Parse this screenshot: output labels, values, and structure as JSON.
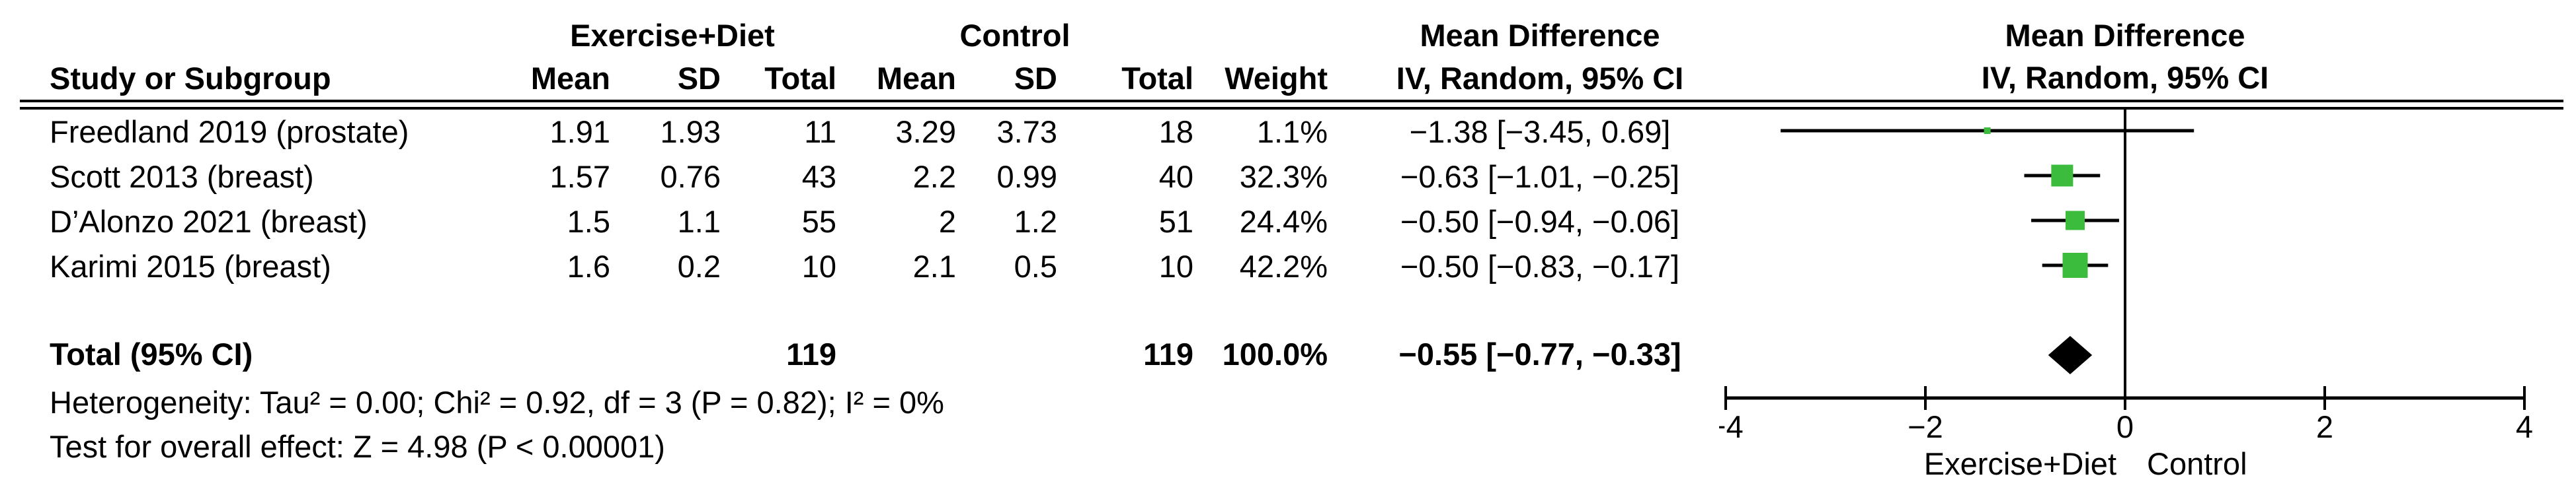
{
  "table": {
    "group1": "Exercise+Diet",
    "group2": "Control",
    "md_header": "Mean Difference",
    "col_headers": {
      "study": "Study or Subgroup",
      "mean": "Mean",
      "sd": "SD",
      "total": "Total",
      "weight": "Weight",
      "ci": "IV, Random, 95% CI"
    },
    "rows": [
      {
        "study": "Freedland 2019 (prostate)",
        "mean1": "1.91",
        "sd1": "1.93",
        "total1": "11",
        "mean2": "3.29",
        "sd2": "3.73",
        "total2": "18",
        "weight": "1.1%",
        "ci": "−1.38 [−3.45, 0.69]"
      },
      {
        "study": "Scott 2013 (breast)",
        "mean1": "1.57",
        "sd1": "0.76",
        "total1": "43",
        "mean2": "2.2",
        "sd2": "0.99",
        "total2": "40",
        "weight": "32.3%",
        "ci": "−0.63 [−1.01, −0.25]"
      },
      {
        "study": "D’Alonzo 2021 (breast)",
        "mean1": "1.5",
        "sd1": "1.1",
        "total1": "55",
        "mean2": "2",
        "sd2": "1.2",
        "total2": "51",
        "weight": "24.4%",
        "ci": "−0.50 [−0.94, −0.06]"
      },
      {
        "study": "Karimi 2015 (breast)",
        "mean1": "1.6",
        "sd1": "0.2",
        "total1": "10",
        "mean2": "2.1",
        "sd2": "0.5",
        "total2": "10",
        "weight": "42.2%",
        "ci": "−0.50 [−0.83, −0.17]"
      }
    ],
    "total_row": {
      "label": "Total (95% CI)",
      "total1": "119",
      "total2": "119",
      "weight": "100.0%",
      "ci": "−0.55 [−0.77, −0.33]"
    },
    "footnotes": {
      "heterogeneity": "Heterogeneity: Tau² = 0.00; Chi² = 0.92, df = 3 (P = 0.82); I² = 0%",
      "overall_effect": "Test for overall effect: Z = 4.98 (P < 0.00001)"
    }
  },
  "chart_data": {
    "type": "forest",
    "title": "Mean Difference",
    "subtitle": "IV, Random, 95% CI",
    "x_axis": {
      "min": -4,
      "max": 4,
      "ticks": [
        -4,
        -2,
        0,
        2,
        4
      ],
      "left_label": "Exercise+Diet",
      "right_label": "Control"
    },
    "marker_color": "#3CBC3C",
    "line_color": "#000000",
    "studies": [
      {
        "name": "Freedland 2019 (prostate)",
        "exercise_diet": {
          "mean": 1.91,
          "sd": 1.93,
          "total": 11
        },
        "control": {
          "mean": 3.29,
          "sd": 3.73,
          "total": 18
        },
        "weight_pct": 1.1,
        "md": -1.38,
        "ci_low": -3.45,
        "ci_high": 0.69
      },
      {
        "name": "Scott 2013 (breast)",
        "exercise_diet": {
          "mean": 1.57,
          "sd": 0.76,
          "total": 43
        },
        "control": {
          "mean": 2.2,
          "sd": 0.99,
          "total": 40
        },
        "weight_pct": 32.3,
        "md": -0.63,
        "ci_low": -1.01,
        "ci_high": -0.25
      },
      {
        "name": "D’Alonzo 2021 (breast)",
        "exercise_diet": {
          "mean": 1.5,
          "sd": 1.1,
          "total": 55
        },
        "control": {
          "mean": 2,
          "sd": 1.2,
          "total": 51
        },
        "weight_pct": 24.4,
        "md": -0.5,
        "ci_low": -0.94,
        "ci_high": -0.06
      },
      {
        "name": "Karimi 2015 (breast)",
        "exercise_diet": {
          "mean": 1.6,
          "sd": 0.2,
          "total": 10
        },
        "control": {
          "mean": 2.1,
          "sd": 0.5,
          "total": 10
        },
        "weight_pct": 42.2,
        "md": -0.5,
        "ci_low": -0.83,
        "ci_high": -0.17
      }
    ],
    "total": {
      "label": "Total (95% CI)",
      "exercise_diet_total": 119,
      "control_total": 119,
      "weight_pct": 100.0,
      "md": -0.55,
      "ci_low": -0.77,
      "ci_high": -0.33
    },
    "heterogeneity": {
      "tau2": 0.0,
      "chi2": 0.92,
      "df": 3,
      "p": 0.82,
      "i2_pct": 0
    },
    "overall_effect": {
      "z": 4.98,
      "p": "< 0.00001"
    }
  }
}
